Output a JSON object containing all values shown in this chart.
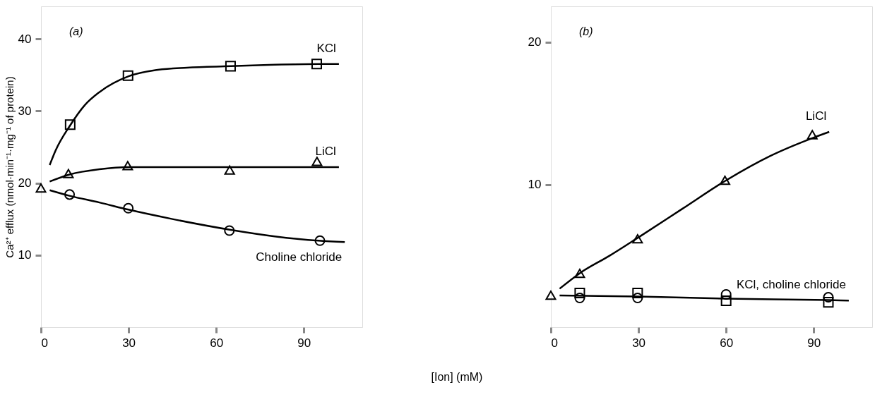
{
  "chart_data": [
    {
      "type": "line",
      "ylabel": "Ca²⁺ efflux (nmol·min⁻¹·mg⁻¹ of protein)",
      "xlim": [
        0,
        110
      ],
      "xticks": [
        0,
        30,
        60,
        90
      ],
      "ylim": [
        0,
        44.5
      ],
      "yticks": [
        10,
        20,
        30,
        40
      ],
      "grid": false,
      "legend": false,
      "annotations": [
        "(a)"
      ],
      "series": [
        {
          "name": "KCl",
          "color": "#000000",
          "marker": "none",
          "x": [
            3,
            5,
            10,
            15,
            20,
            30,
            40,
            50,
            65,
            80,
            95,
            102
          ],
          "values": [
            22.5,
            24.5,
            28,
            30.8,
            32.6,
            34.8,
            35.7,
            36.0,
            36.2,
            36.4,
            36.5,
            36.5
          ]
        },
        {
          "name": "LiCl",
          "color": "#000000",
          "marker": "none",
          "x": [
            3,
            10,
            20,
            30,
            50,
            65,
            80,
            95,
            102
          ],
          "values": [
            20.2,
            21.2,
            21.9,
            22.2,
            22.2,
            22.2,
            22.2,
            22.2,
            22.2
          ]
        },
        {
          "name": "Choline chloride",
          "color": "#000000",
          "marker": "none",
          "x": [
            3,
            10,
            20,
            30,
            45,
            65,
            80,
            95,
            104
          ],
          "values": [
            19.0,
            18.2,
            17.3,
            16.3,
            15.0,
            13.5,
            12.6,
            12.0,
            11.8
          ]
        },
        {
          "type": "scatter",
          "color": "#000000",
          "marker": "square",
          "x": [
            10,
            29.8,
            64.9,
            94.4
          ],
          "values": [
            28.1,
            34.9,
            36.2,
            36.5
          ]
        },
        {
          "type": "scatter",
          "color": "#000000",
          "marker": "triangle",
          "x": [
            0,
            9.4,
            29.7,
            64.6,
            94.5
          ],
          "values": [
            19.3,
            21.3,
            22.4,
            21.8,
            23.0
          ]
        },
        {
          "type": "scatter",
          "color": "#000000",
          "marker": "circle",
          "x": [
            9.8,
            29.9,
            64.5,
            95.5
          ],
          "values": [
            18.4,
            16.5,
            13.4,
            12.0
          ]
        }
      ]
    },
    {
      "type": "line",
      "xlabel": "[Ion] (mM)",
      "xlim": [
        0,
        110
      ],
      "xticks": [
        0,
        30,
        60,
        90
      ],
      "ylim": [
        0,
        22.5
      ],
      "yticks": [
        10,
        20
      ],
      "grid": false,
      "legend": false,
      "annotations": [
        "(b)"
      ],
      "series": [
        {
          "name": "LiCl",
          "color": "#000000",
          "marker": "none",
          "x": [
            3,
            10,
            20,
            30,
            45,
            60,
            75,
            90,
            95.3
          ],
          "values": [
            2.7,
            3.8,
            5.0,
            6.3,
            8.3,
            10.3,
            12.0,
            13.3,
            13.7
          ]
        },
        {
          "name": "KCl, choline chloride",
          "color": "#000000",
          "marker": "none",
          "x": [
            3,
            30,
            60,
            95,
            102
          ],
          "values": [
            2.23,
            2.15,
            2.0,
            1.9,
            1.87
          ]
        },
        {
          "type": "scatter",
          "color": "#000000",
          "marker": "triangle",
          "x": [
            0,
            9.9,
            29.7,
            59.6,
            89.5
          ],
          "values": [
            2.24,
            3.78,
            6.2,
            10.3,
            13.5
          ]
        },
        {
          "type": "scatter",
          "color": "#000000",
          "marker": "square",
          "x": [
            9.9,
            29.7,
            60,
            95
          ],
          "values": [
            2.4,
            2.4,
            1.85,
            1.75
          ]
        },
        {
          "type": "scatter",
          "color": "#000000",
          "marker": "circle",
          "x": [
            9.9,
            29.7,
            60,
            95
          ],
          "values": [
            2.05,
            2.05,
            2.3,
            2.1
          ]
        }
      ]
    }
  ]
}
